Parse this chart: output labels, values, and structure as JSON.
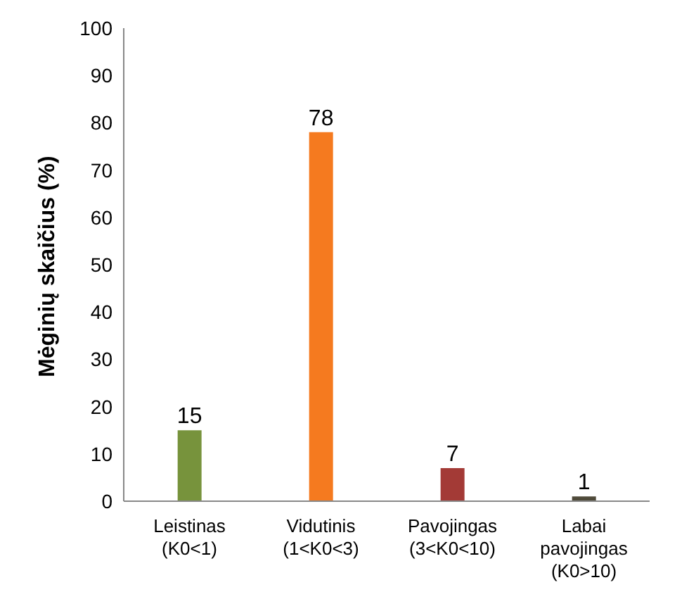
{
  "chart_data": {
    "type": "bar",
    "ylabel": "Mėginių skaičius (%)",
    "categories": [
      "Leistinas\n(K0<1)",
      "Vidutinis\n(1<K0<3)",
      "Pavojingas\n(3<K0<10)",
      "Labai\npavojingas\n(K0>10)"
    ],
    "values": [
      15,
      78,
      7,
      1
    ],
    "colors": [
      "#77933c",
      "#f57a1f",
      "#a33a36",
      "#4f4a3a"
    ],
    "ylim": [
      0,
      100
    ],
    "yticks": [
      0,
      10,
      20,
      30,
      40,
      50,
      60,
      70,
      80,
      90,
      100
    ],
    "data_labels": true
  }
}
